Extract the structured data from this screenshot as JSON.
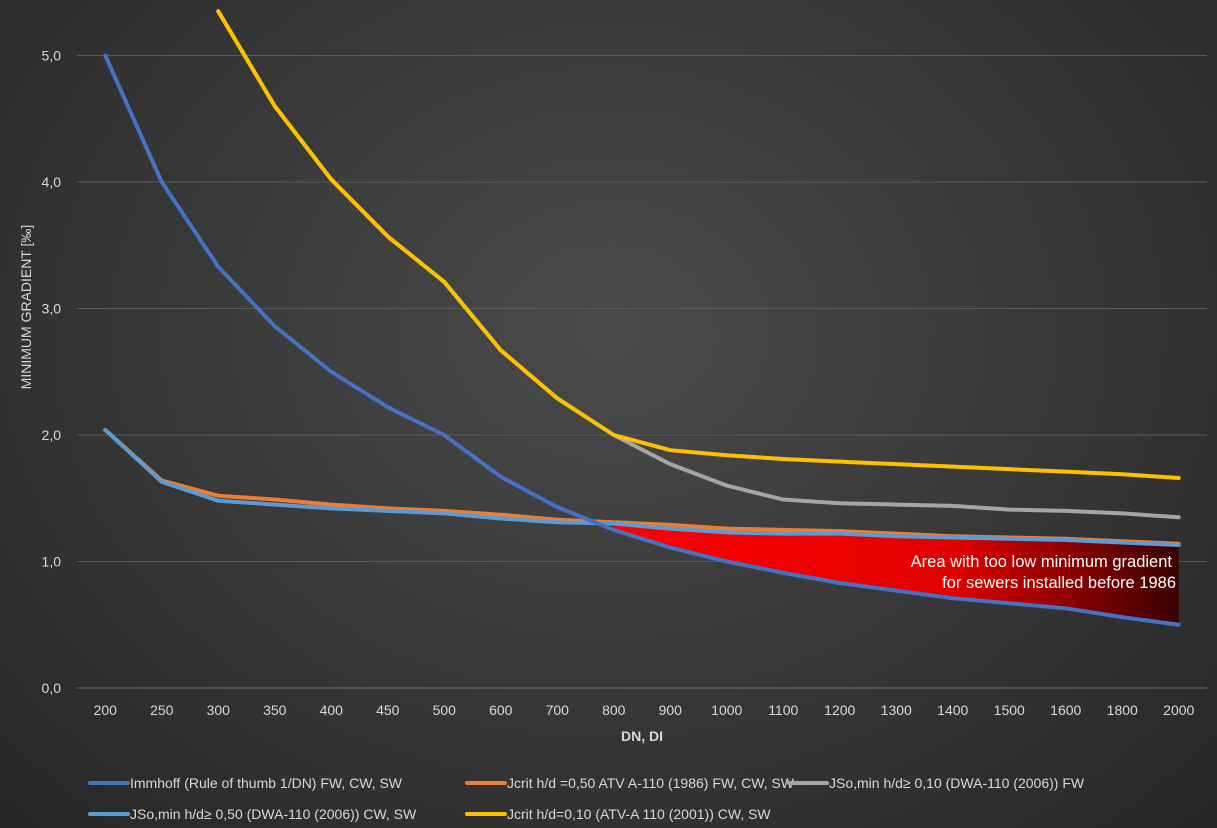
{
  "chart_data": {
    "type": "line",
    "xlabel": "DN, DI",
    "ylabel": "MINIMUM GRADIENT [‰]",
    "categories": [
      "200",
      "250",
      "300",
      "350",
      "400",
      "450",
      "500",
      "600",
      "700",
      "800",
      "900",
      "1000",
      "1100",
      "1200",
      "1300",
      "1400",
      "1500",
      "1600",
      "1800",
      "2000"
    ],
    "y_tick_labels": [
      "0,0",
      "1,0",
      "2,0",
      "3,0",
      "4,0",
      "5,0"
    ],
    "ylim": [
      0,
      5.3
    ],
    "grid": true,
    "legend_position": "bottom",
    "series": [
      {
        "name": "Immhoff (Rule of thumb 1/DN) FW, CW, SW",
        "color": "#4472c4",
        "values": [
          5.0,
          4.0,
          3.33,
          2.86,
          2.5,
          2.22,
          2.0,
          1.67,
          1.43,
          1.25,
          1.11,
          1.0,
          0.91,
          0.83,
          0.77,
          0.71,
          0.67,
          0.63,
          0.56,
          0.5
        ]
      },
      {
        "name": "Jcrit h/d =0,50 ATV A-110 (1986) FW, CW, SW",
        "color": "#ed7d31",
        "values": [
          2.04,
          1.64,
          1.52,
          1.49,
          1.45,
          1.42,
          1.4,
          1.37,
          1.33,
          1.31,
          1.29,
          1.26,
          1.25,
          1.24,
          1.22,
          1.2,
          1.19,
          1.18,
          1.16,
          1.14
        ]
      },
      {
        "name": "JSo,min h/d≥ 0,10 (DWA-110 (2006)) FW",
        "color": "#a5a5a5",
        "values": [
          null,
          null,
          5.35,
          4.6,
          4.02,
          3.57,
          3.21,
          2.67,
          2.29,
          2.0,
          1.77,
          1.6,
          1.49,
          1.46,
          1.45,
          1.44,
          1.41,
          1.4,
          1.38,
          1.35
        ]
      },
      {
        "name": "JSo,min h/d≥ 0,50 (DWA-110 (2006)) CW, SW",
        "color": "#5b9bd5",
        "values": [
          2.04,
          1.63,
          1.48,
          1.45,
          1.42,
          1.4,
          1.38,
          1.34,
          1.31,
          1.3,
          1.26,
          1.23,
          1.22,
          1.22,
          1.2,
          1.19,
          1.18,
          1.17,
          1.15,
          1.13
        ]
      },
      {
        "name": "Jcrit h/d=0,10 (ATV-A 110 (2001)) CW, SW",
        "color": "#ffc000",
        "values": [
          null,
          null,
          5.35,
          4.6,
          4.02,
          3.57,
          3.21,
          2.67,
          2.29,
          2.0,
          1.88,
          1.84,
          1.81,
          1.79,
          1.77,
          1.75,
          1.73,
          1.71,
          1.69,
          1.66
        ]
      }
    ],
    "annotation": {
      "lines": [
        "Area with too low minimum gradient",
        "for sewers installed before 1986"
      ],
      "region_color": "#ff0000"
    }
  }
}
